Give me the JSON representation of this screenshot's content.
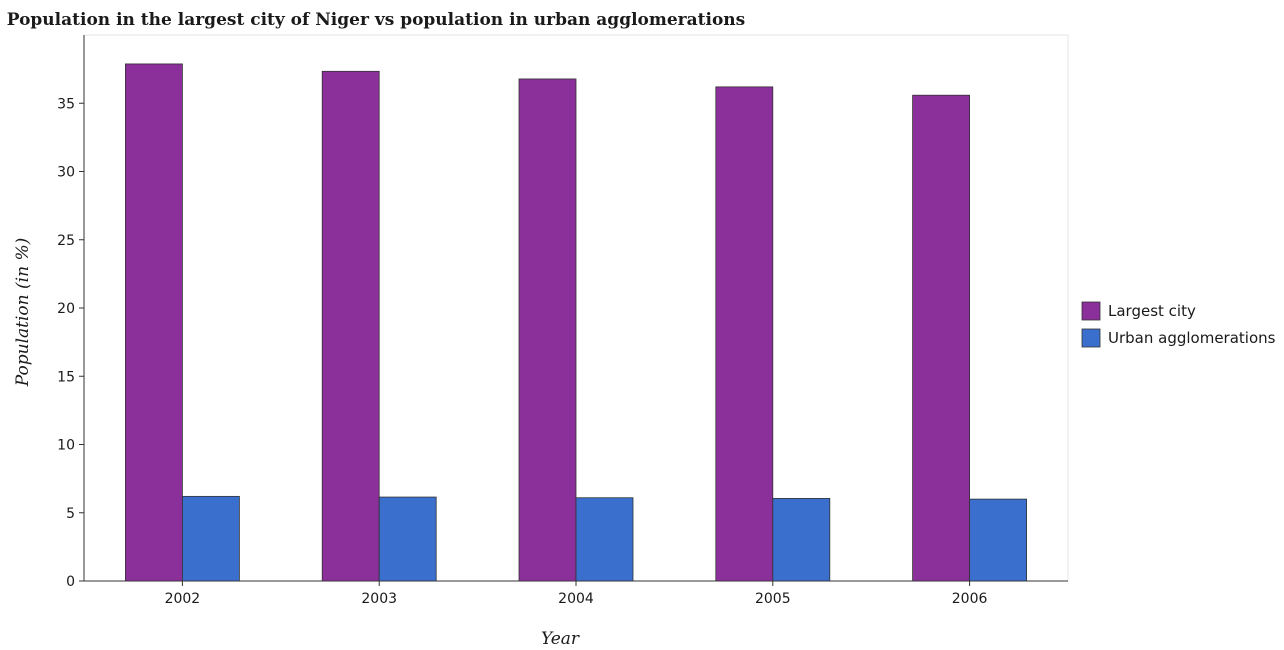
{
  "chart_data": {
    "type": "bar",
    "title": "Population in the largest city of Niger vs population in urban agglomerations",
    "xlabel": "Year",
    "ylabel": "Population (in %)",
    "categories": [
      "2002",
      "2003",
      "2004",
      "2005",
      "2006"
    ],
    "series": [
      {
        "name": "Largest city",
        "color": "#8b2f9b",
        "values": [
          37.88,
          37.34,
          36.78,
          36.2,
          35.59
        ]
      },
      {
        "name": "Urban agglomerations",
        "color": "#3a6fce",
        "values": [
          6.2,
          6.15,
          6.1,
          6.05,
          6.0
        ]
      }
    ],
    "ylim": [
      0,
      40
    ],
    "yticks": [
      0,
      5,
      10,
      15,
      20,
      25,
      30,
      35
    ],
    "grid": false,
    "legend_position": "right"
  }
}
